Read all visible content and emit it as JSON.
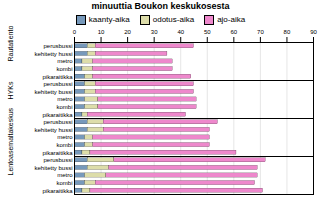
{
  "chart_data": {
    "type": "bar",
    "title": "minuuttia Boukon keskukosesta",
    "orientation": "horizontal",
    "stacked": true,
    "grid": true,
    "legend": "top",
    "groups": [
      {
        "label": "Rautatientori",
        "categories": [
          "perusbussi",
          "kehitetty hussi",
          "metro",
          "kombi",
          "pikaraitikka"
        ]
      },
      {
        "label": "HYKs",
        "categories": [
          "perusbussi",
          "kehitetty bussi",
          "metro",
          "kombi",
          "pikaraitikka"
        ]
      },
      {
        "label": "Itakeskus",
        "categories": [
          "perusbussi",
          "kehitetty hussi",
          "metro",
          "kombi",
          "pikaraitikka"
        ]
      },
      {
        "label": "Lentoasema",
        "categories": [
          "perusbussi",
          "kehitetty bussi",
          "metro",
          "kombi",
          "pikaraitikka"
        ]
      }
    ],
    "series": [
      {
        "name": "kaanty-aika",
        "color": "#7799bb",
        "values": [
          5,
          5,
          3,
          3,
          4,
          4,
          4,
          4,
          4,
          3,
          5,
          5,
          4,
          4,
          3,
          5,
          5,
          4,
          4,
          3
        ]
      },
      {
        "name": "odotus-aika",
        "color": "#ddddaa",
        "values": [
          3,
          3,
          4,
          4,
          3,
          4,
          4,
          5,
          5,
          2,
          6,
          6,
          3,
          3,
          3,
          10,
          8,
          8,
          4,
          3
        ]
      },
      {
        "name": "ajo-aika",
        "color": "#ee88cc",
        "values": [
          37,
          27,
          30,
          30,
          37,
          37,
          37,
          37,
          37,
          37,
          43,
          40,
          44,
          44,
          55,
          57,
          56,
          57,
          60,
          65
        ]
      }
    ],
    "xlim": [
      0,
      90
    ],
    "xticks": [
      0,
      10,
      20,
      30,
      40,
      50,
      60,
      70,
      80,
      90
    ]
  }
}
